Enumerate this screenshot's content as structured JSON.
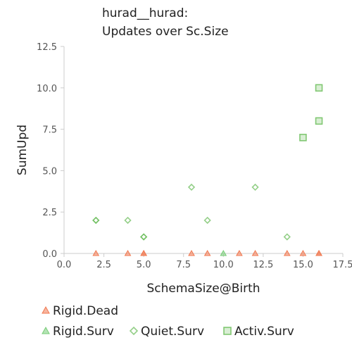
{
  "chart_data": {
    "type": "scatter",
    "title_lines": [
      "hurad__hurad:",
      "Updates over Sc.Size"
    ],
    "xlabel": "SchemaSize@Birth",
    "ylabel": "SumUpd",
    "xlim": [
      0,
      17.5
    ],
    "ylim": [
      0,
      12.5
    ],
    "x_ticks": [
      0,
      2.5,
      5,
      7.5,
      10,
      12.5,
      15,
      17.5
    ],
    "y_ticks": [
      0,
      2.5,
      5,
      7.5,
      10,
      12.5
    ],
    "x_tick_labels": [
      "0.0",
      "2.5",
      "5.0",
      "7.5",
      "10.0",
      "12.5",
      "15.0",
      "17.5"
    ],
    "y_tick_labels": [
      "0.0",
      "2.5",
      "5.0",
      "7.5",
      "10.0",
      "12.5"
    ],
    "grid": false,
    "legend_position": "bottom",
    "series": [
      {
        "name": "Rigid.Dead",
        "marker": "triangle",
        "color": "#f07850",
        "points": [
          [
            2,
            0
          ],
          [
            4,
            0
          ],
          [
            5,
            0
          ],
          [
            5,
            0
          ],
          [
            8,
            0
          ],
          [
            9,
            0
          ],
          [
            11,
            0
          ],
          [
            12,
            0
          ],
          [
            14,
            0
          ],
          [
            15,
            0
          ],
          [
            16,
            0
          ],
          [
            16,
            0
          ]
        ]
      },
      {
        "name": "Rigid.Surv",
        "marker": "triangle",
        "color": "#77cc77",
        "points": [
          [
            10,
            0
          ]
        ]
      },
      {
        "name": "Quiet.Surv",
        "marker": "diamond",
        "color": "#66bb55",
        "points": [
          [
            2,
            2
          ],
          [
            2,
            2
          ],
          [
            4,
            2
          ],
          [
            5,
            1
          ],
          [
            5,
            1
          ],
          [
            8,
            4
          ],
          [
            9,
            2
          ],
          [
            12,
            4
          ],
          [
            14,
            1
          ]
        ]
      },
      {
        "name": "Activ.Surv",
        "marker": "square",
        "color": "#66bb55",
        "points": [
          [
            15,
            7
          ],
          [
            16,
            8
          ],
          [
            16,
            10
          ]
        ]
      }
    ]
  }
}
